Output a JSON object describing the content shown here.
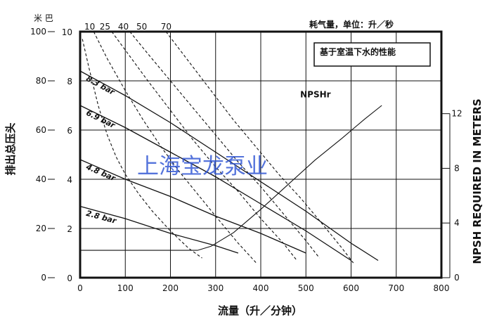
{
  "chart_data": {
    "type": "line",
    "title_left_unit": "米 巴",
    "title_right": "耗气量，单位：升／秒",
    "note": "基于室温下水的性能",
    "watermark": "上海宝龙泵业",
    "xlabel": "流量（升／分钟）",
    "ylabel_left": "排出总压头",
    "ylabel_right": "NPSH REQUIRED IN METERS",
    "xlim": [
      0,
      800
    ],
    "x_ticks": [
      "0",
      "100",
      "200",
      "300",
      "400",
      "500",
      "600",
      "700",
      "800"
    ],
    "y_meter_ticks": [
      "0",
      "20",
      "40",
      "60",
      "80",
      "100"
    ],
    "y_bar_ticks": [
      "0",
      "2",
      "4",
      "6",
      "8",
      "10"
    ],
    "y_npsh_ticks": [
      "0",
      "4",
      "8",
      "12"
    ],
    "y_meter_lim": [
      0,
      100
    ],
    "y_npsh_lim": [
      0,
      18
    ],
    "air_consumption_labels": [
      "10",
      "25",
      "40",
      "50",
      "70"
    ],
    "pressure_curves": [
      {
        "name": "8.3 bar",
        "x": [
          0,
          100,
          200,
          300,
          400,
          500,
          600,
          660
        ],
        "y": [
          84,
          74,
          63,
          51,
          39,
          27,
          14,
          7
        ]
      },
      {
        "name": "6.9 bar",
        "x": [
          0,
          100,
          200,
          300,
          400,
          500,
          600
        ],
        "y": [
          70,
          61,
          51,
          41,
          30,
          19,
          7
        ]
      },
      {
        "name": "4.8 bar",
        "x": [
          0,
          100,
          200,
          300,
          400,
          500
        ],
        "y": [
          48,
          40,
          33,
          25,
          18,
          10
        ]
      },
      {
        "name": "2.8 bar",
        "x": [
          0,
          100,
          200,
          300,
          350
        ],
        "y": [
          29,
          24,
          18,
          13,
          10
        ]
      }
    ],
    "air_curves": [
      {
        "x": [
          5,
          20,
          40,
          60,
          80,
          100,
          130,
          160,
          200,
          240,
          270
        ],
        "y": [
          97,
          85,
          70,
          58,
          49,
          42,
          34,
          27,
          19,
          12,
          8
        ]
      },
      {
        "x": [
          30,
          60,
          100,
          140,
          180,
          220,
          260,
          300,
          350,
          390
        ],
        "y": [
          100,
          89,
          76,
          64,
          53,
          43,
          34,
          25,
          14,
          6
        ]
      },
      {
        "x": [
          70,
          110,
          150,
          200,
          250,
          300,
          350,
          400,
          450,
          480
        ],
        "y": [
          100,
          90,
          80,
          68,
          56,
          45,
          35,
          24,
          14,
          7
        ]
      },
      {
        "x": [
          110,
          150,
          200,
          250,
          300,
          350,
          400,
          450,
          500,
          530
        ],
        "y": [
          100,
          91,
          80,
          69,
          58,
          47,
          37,
          26,
          15,
          8
        ]
      },
      {
        "x": [
          190,
          240,
          290,
          340,
          390,
          440,
          490,
          540,
          580,
          605
        ],
        "y": [
          100,
          88,
          76,
          64,
          53,
          42,
          32,
          21,
          12,
          6
        ]
      }
    ],
    "npsh_curve": {
      "name": "NPSHr",
      "x": [
        0,
        260,
        290,
        340,
        400,
        460,
        520,
        580,
        630,
        668
      ],
      "y": [
        2,
        2,
        2.3,
        3.3,
        5,
        6.8,
        8.6,
        10.2,
        11.6,
        12.6
      ]
    },
    "grid": true
  }
}
